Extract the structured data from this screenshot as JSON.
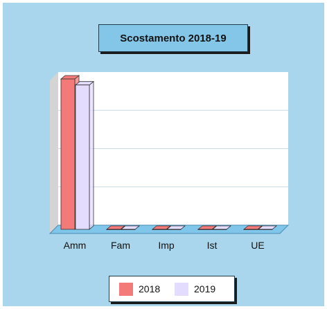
{
  "chart_data": {
    "type": "bar",
    "title": "Scostamento 2018-19",
    "categories": [
      "Amm",
      "Fam",
      "Imp",
      "Ist",
      "UE"
    ],
    "series": [
      {
        "name": "2018",
        "color": "#f47a7a",
        "values": [
          100,
          0,
          0,
          0,
          0
        ]
      },
      {
        "name": "2019",
        "color": "#e4dcff",
        "values": [
          96,
          0,
          0,
          0,
          0
        ]
      }
    ],
    "ylim": [
      0,
      100
    ],
    "grid": true,
    "legend_position": "bottom"
  }
}
